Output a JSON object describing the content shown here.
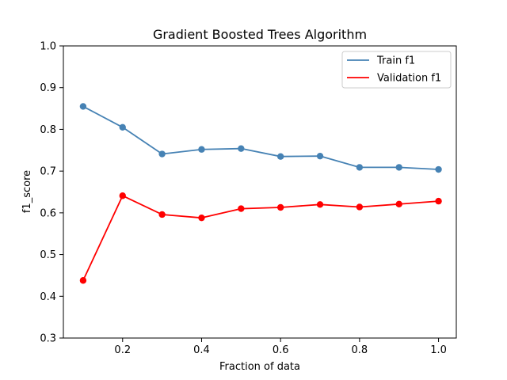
{
  "chart_data": {
    "type": "line",
    "title": "Gradient Boosted Trees Algorithm",
    "xlabel": "Fraction of data",
    "ylabel": "f1_score",
    "x": [
      0.1,
      0.2,
      0.3,
      0.4,
      0.5,
      0.6,
      0.7,
      0.8,
      0.9,
      1.0
    ],
    "xlim": [
      0.05,
      1.045
    ],
    "ylim": [
      0.3,
      1.0
    ],
    "xticks": [
      0.2,
      0.4,
      0.6,
      0.8,
      1.0
    ],
    "xtick_labels": [
      "0.2",
      "0.4",
      "0.6",
      "0.8",
      "1.0"
    ],
    "yticks": [
      0.3,
      0.4,
      0.5,
      0.6,
      0.7,
      0.8,
      0.9,
      1.0
    ],
    "ytick_labels": [
      "0.3",
      "0.4",
      "0.5",
      "0.6",
      "0.7",
      "0.8",
      "0.9",
      "1.0"
    ],
    "grid": false,
    "legend_position": "top-right",
    "series": [
      {
        "name": "Train f1",
        "color": "#4682b4",
        "marker": "circle",
        "values": [
          0.855,
          0.805,
          0.741,
          0.752,
          0.754,
          0.735,
          0.736,
          0.709,
          0.709,
          0.704
        ]
      },
      {
        "name": "Validation f1",
        "color": "#ff0000",
        "marker": "circle",
        "values": [
          0.438,
          0.641,
          0.596,
          0.588,
          0.61,
          0.613,
          0.62,
          0.614,
          0.621,
          0.628
        ]
      }
    ]
  }
}
